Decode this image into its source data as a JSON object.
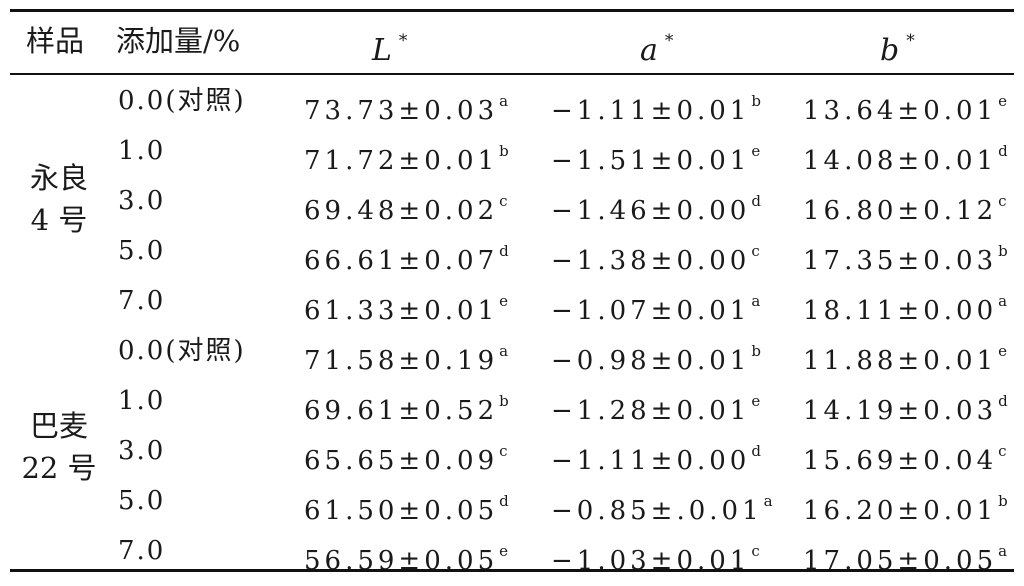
{
  "headers": {
    "sample": "样品",
    "addition": "添加量/%",
    "L": {
      "var": "L",
      "sup": "*"
    },
    "a": {
      "var": "a",
      "sup": "*"
    },
    "b": {
      "var": "b",
      "sup": "*"
    }
  },
  "groups": [
    {
      "name_line1": "永良",
      "name_line2": "4 号"
    },
    {
      "name_line1": "巴麦",
      "name_line2": "22 号"
    }
  ],
  "rows": [
    {
      "add": "0.0(对照)",
      "L": {
        "v": "73.73±0.03",
        "s": "a"
      },
      "a": {
        "v": "−1.11±0.01",
        "s": "b"
      },
      "b": {
        "v": "13.64±0.01",
        "s": "e"
      }
    },
    {
      "add": "1.0",
      "L": {
        "v": "71.72±0.01",
        "s": "b"
      },
      "a": {
        "v": "−1.51±0.01",
        "s": "e"
      },
      "b": {
        "v": "14.08±0.01",
        "s": "d"
      }
    },
    {
      "add": "3.0",
      "L": {
        "v": "69.48±0.02",
        "s": "c"
      },
      "a": {
        "v": "−1.46±0.00",
        "s": "d"
      },
      "b": {
        "v": "16.80±0.12",
        "s": "c"
      }
    },
    {
      "add": "5.0",
      "L": {
        "v": "66.61±0.07",
        "s": "d"
      },
      "a": {
        "v": "−1.38±0.00",
        "s": "c"
      },
      "b": {
        "v": "17.35±0.03",
        "s": "b"
      }
    },
    {
      "add": "7.0",
      "L": {
        "v": "61.33±0.01",
        "s": "e"
      },
      "a": {
        "v": "−1.07±0.01",
        "s": "a"
      },
      "b": {
        "v": "18.11±0.00",
        "s": "a"
      }
    },
    {
      "add": "0.0(对照)",
      "L": {
        "v": "71.58±0.19",
        "s": "a"
      },
      "a": {
        "v": "−0.98±0.01",
        "s": "b"
      },
      "b": {
        "v": "11.88±0.01",
        "s": "e"
      }
    },
    {
      "add": "1.0",
      "L": {
        "v": "69.61±0.52",
        "s": "b"
      },
      "a": {
        "v": "−1.28±0.01",
        "s": "e"
      },
      "b": {
        "v": "14.19±0.03",
        "s": "d"
      }
    },
    {
      "add": "3.0",
      "L": {
        "v": "65.65±0.09",
        "s": "c"
      },
      "a": {
        "v": "−1.11±0.00",
        "s": "d"
      },
      "b": {
        "v": "15.69±0.04",
        "s": "c"
      }
    },
    {
      "add": "5.0",
      "L": {
        "v": "61.50±0.05",
        "s": "d"
      },
      "a": {
        "v": "−0.85±.0.01",
        "s": "a"
      },
      "b": {
        "v": "16.20±0.01",
        "s": "b"
      }
    },
    {
      "add": "7.0",
      "L": {
        "v": "56.59±0.05",
        "s": "e"
      },
      "a": {
        "v": "−1.03±0.01",
        "s": "c"
      },
      "b": {
        "v": "17.05±0.05",
        "s": "a"
      }
    }
  ]
}
